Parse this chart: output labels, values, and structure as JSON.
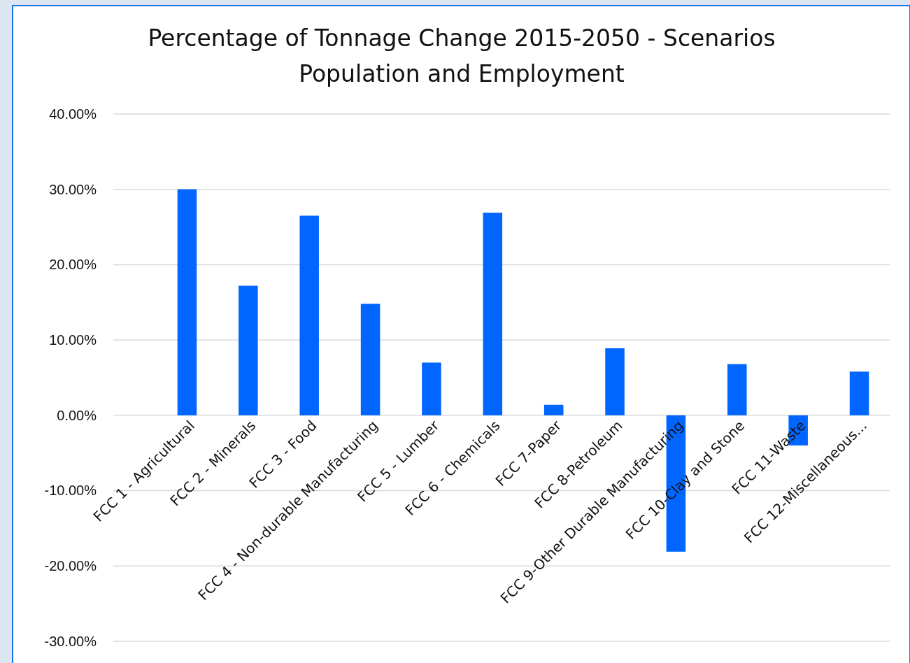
{
  "chart_data": {
    "type": "bar",
    "title": "Percentage of Tonnage Change 2015-2050 - Scenarios Population and Employment",
    "categories": [
      "FCC 1 - Agricultural",
      "FCC 2 - Minerals",
      "FCC 3 - Food",
      "FCC 4 - Non-durable Manufacturing",
      "FCC 5 - Lumber",
      "FCC 6 - Chemicals",
      "FCC 7-Paper",
      "FCC 8-Petroleum",
      "FCC 9-Other Durable Manufacturing",
      "FCC 10-Clay and Stone",
      "FCC 11-Waste",
      "FCC 12-Miscellaneous..."
    ],
    "values": [
      30.0,
      17.2,
      26.5,
      14.8,
      7.0,
      26.9,
      1.4,
      8.9,
      -18.1,
      6.8,
      -4.0,
      5.8
    ],
    "color": "#0066ff",
    "ylim": [
      -30,
      40
    ],
    "yticks": [
      {
        "value": -30,
        "label": "-30.00%"
      },
      {
        "value": -20,
        "label": "-20.00%"
      },
      {
        "value": -10,
        "label": "-10.00%"
      },
      {
        "value": 0,
        "label": "0.00%"
      },
      {
        "value": 10,
        "label": "10.00%"
      },
      {
        "value": 20,
        "label": "20.00%"
      },
      {
        "value": 30,
        "label": "30.00%"
      },
      {
        "value": 40,
        "label": "40.00%"
      }
    ],
    "grid": "y"
  }
}
